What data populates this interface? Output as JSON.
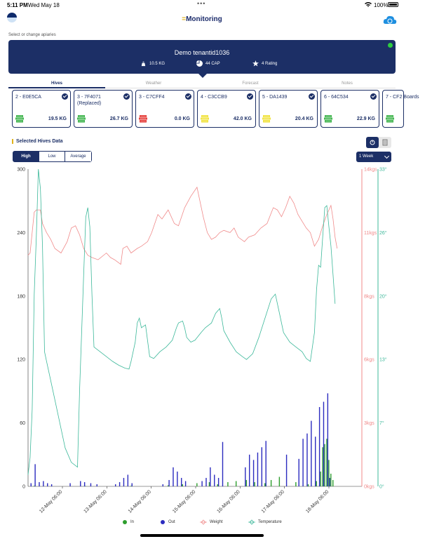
{
  "status_bar": {
    "time": "5:11 PM",
    "date": "Wed May 18",
    "battery": "100%"
  },
  "nav": {
    "title": "Monitoring",
    "title_mark": "="
  },
  "subtitle": "Select or change apiaries",
  "apiary": {
    "name": "Demo tenantid1036",
    "weight": "10.5 KG",
    "capacity": "44 CAP",
    "rating": "4 Rating"
  },
  "tabs": [
    {
      "label": "Hives",
      "active": true
    },
    {
      "label": "Weather",
      "active": false
    },
    {
      "label": "Forecast",
      "active": false
    },
    {
      "label": "Notes",
      "active": false
    }
  ],
  "hives": [
    {
      "name": "2 - E0E5CA",
      "weight": "19.5 KG",
      "status_color": "#3cb34a"
    },
    {
      "name": "3 - 7F4071 (Replaced)",
      "weight": "26.7 KG",
      "status_color": "#3cb34a"
    },
    {
      "name": "3 - C7CFF4",
      "weight": "0.0 KG",
      "status_color": "#e53935"
    },
    {
      "name": "4 - C3CCB9",
      "weight": "42.0 KG",
      "status_color": "#f0e23a"
    },
    {
      "name": "5 - DA1439",
      "weight": "20.4 KG",
      "status_color": "#f0e23a"
    },
    {
      "name": "6 - 64C534",
      "weight": "22.9 KG",
      "status_color": "#3cb34a"
    },
    {
      "name": "7 - CF2 Boards",
      "weight": "",
      "status_color": "#3cb34a"
    }
  ],
  "section_title": "Selected Hives Data",
  "range_buttons": [
    {
      "label": "High",
      "selected": true
    },
    {
      "label": "Low",
      "selected": false
    },
    {
      "label": "Average",
      "selected": false
    }
  ],
  "period": "1 Week",
  "colors": {
    "navy": "#1c2f66",
    "in": "#2e9e2e",
    "out": "#2b2bbf",
    "weight": "#f08a8a",
    "temperature": "#3cb89a"
  },
  "chart_data": {
    "type": "line",
    "x_tick_labels": [
      "12-May 06:00",
      "13-May 06:00",
      "14-May 06:00",
      "15-May 06:00",
      "16-May 06:00",
      "17-May 06:00",
      "18-May 06:00"
    ],
    "x_range": [
      0,
      162
    ],
    "left_axis": {
      "ticks": [
        "0",
        "60",
        "120",
        "180",
        "240",
        "300"
      ],
      "range": [
        0,
        300
      ]
    },
    "weight_axis": {
      "ticks": [
        "0kgs",
        "3kgs",
        "6kgs",
        "8kgs",
        "11kgs",
        "14kgs"
      ],
      "range": [
        0,
        14
      ]
    },
    "temperature_axis": {
      "ticks": [
        "0°",
        "7°",
        "13°",
        "20°",
        "26°",
        "33°"
      ],
      "range": [
        0,
        33
      ]
    },
    "legend": [
      "In",
      "Out",
      "Weight",
      "Temperature"
    ],
    "weight_series": [
      [
        0,
        10.2
      ],
      [
        1,
        10.3
      ],
      [
        3,
        12.1
      ],
      [
        4,
        12.2
      ],
      [
        6,
        12.2
      ],
      [
        7,
        11.6
      ],
      [
        9,
        11.2
      ],
      [
        11,
        10.9
      ],
      [
        13,
        10.5
      ],
      [
        16,
        10.3
      ],
      [
        19,
        10.8
      ],
      [
        21,
        11.4
      ],
      [
        23,
        11.5
      ],
      [
        25,
        11.1
      ],
      [
        27,
        10.5
      ],
      [
        29,
        10.2
      ],
      [
        31,
        10.1
      ],
      [
        34,
        10
      ],
      [
        38,
        10.3
      ],
      [
        40,
        10.1
      ],
      [
        42,
        10
      ],
      [
        45,
        9.8
      ],
      [
        46,
        10.5
      ],
      [
        48,
        10.6
      ],
      [
        50,
        10.3
      ],
      [
        53,
        10.5
      ],
      [
        55,
        10.6
      ],
      [
        58,
        10.8
      ],
      [
        60,
        11.2
      ],
      [
        63,
        12.0
      ],
      [
        65,
        11.8
      ],
      [
        68,
        12.2
      ],
      [
        71,
        11.6
      ],
      [
        73,
        11.5
      ],
      [
        76,
        12.3
      ],
      [
        79,
        12.8
      ],
      [
        82,
        13.2
      ],
      [
        85,
        11.9
      ],
      [
        87,
        11.2
      ],
      [
        89,
        10.9
      ],
      [
        91,
        11.0
      ],
      [
        93,
        11.2
      ],
      [
        95,
        11.3
      ],
      [
        98,
        11.2
      ],
      [
        100,
        11.4
      ],
      [
        102,
        11.0
      ],
      [
        105,
        10.8
      ],
      [
        107,
        11.0
      ],
      [
        110,
        11.1
      ],
      [
        113,
        11.4
      ],
      [
        116,
        11.6
      ],
      [
        119,
        12.3
      ],
      [
        121,
        12.2
      ],
      [
        123,
        11.9
      ],
      [
        125,
        12.3
      ],
      [
        127,
        12.8
      ],
      [
        129,
        12.5
      ],
      [
        131,
        12.0
      ],
      [
        133,
        11.7
      ],
      [
        135,
        11.4
      ],
      [
        137,
        11.2
      ],
      [
        139,
        10.6
      ],
      [
        141,
        10.9
      ],
      [
        143,
        11.5
      ],
      [
        145,
        12.0
      ],
      [
        147,
        12.4
      ],
      [
        148,
        11.8
      ],
      [
        149,
        11.0
      ],
      [
        150,
        10.5
      ]
    ],
    "temperature_series": [
      [
        0,
        1.2
      ],
      [
        1,
        3
      ],
      [
        2,
        8
      ],
      [
        3,
        20
      ],
      [
        4,
        26
      ],
      [
        5,
        33
      ],
      [
        6,
        31
      ],
      [
        7,
        25
      ],
      [
        8,
        14
      ],
      [
        9,
        13
      ],
      [
        12,
        10
      ],
      [
        15,
        7
      ],
      [
        18,
        4
      ],
      [
        21,
        2.5
      ],
      [
        24,
        2
      ],
      [
        25,
        10
      ],
      [
        27,
        22
      ],
      [
        28,
        28
      ],
      [
        29,
        29
      ],
      [
        30,
        27
      ],
      [
        31,
        20
      ],
      [
        32,
        14.5
      ],
      [
        35,
        14
      ],
      [
        38,
        13.5
      ],
      [
        41,
        13
      ],
      [
        44,
        12.6
      ],
      [
        47,
        12.3
      ],
      [
        49,
        12.2
      ],
      [
        50,
        13
      ],
      [
        52,
        15
      ],
      [
        53,
        17
      ],
      [
        54,
        17.5
      ],
      [
        55,
        16.5
      ],
      [
        57,
        16.8
      ],
      [
        59,
        13.5
      ],
      [
        61,
        13.3
      ],
      [
        64,
        14
      ],
      [
        67,
        14.5
      ],
      [
        70,
        15.2
      ],
      [
        72,
        16.5
      ],
      [
        73,
        17
      ],
      [
        75,
        17.2
      ],
      [
        76,
        16.5
      ],
      [
        77,
        15.5
      ],
      [
        79,
        15
      ],
      [
        81,
        15.2
      ],
      [
        84,
        16
      ],
      [
        86,
        16.5
      ],
      [
        89,
        17
      ],
      [
        91,
        18
      ],
      [
        93,
        18.5
      ],
      [
        94,
        17.5
      ],
      [
        95,
        16.2
      ],
      [
        98,
        15
      ],
      [
        101,
        14
      ],
      [
        104,
        13.5
      ],
      [
        106,
        13.2
      ],
      [
        109,
        13.8
      ],
      [
        112,
        15.5
      ],
      [
        115,
        17.5
      ],
      [
        118,
        19.5
      ],
      [
        120,
        20
      ],
      [
        122,
        18
      ],
      [
        124,
        16
      ],
      [
        127,
        15
      ],
      [
        130,
        14.5
      ],
      [
        133,
        14
      ],
      [
        135,
        13.3
      ],
      [
        137,
        13
      ],
      [
        139,
        16
      ],
      [
        140,
        20.5
      ],
      [
        141,
        23
      ],
      [
        142,
        22.8
      ],
      [
        143,
        26
      ],
      [
        144,
        29
      ],
      [
        145,
        29.2
      ],
      [
        146,
        27
      ],
      [
        147,
        25
      ],
      [
        148,
        22
      ],
      [
        149,
        19
      ]
    ],
    "in_series": [
      [
        3,
        0.5
      ],
      [
        28,
        0.3
      ],
      [
        50,
        0.5
      ],
      [
        68,
        1
      ],
      [
        75,
        2
      ],
      [
        82,
        3
      ],
      [
        88,
        4
      ],
      [
        92,
        2
      ],
      [
        97,
        4
      ],
      [
        101,
        5
      ],
      [
        106,
        6
      ],
      [
        110,
        4
      ],
      [
        115,
        3
      ],
      [
        118,
        6
      ],
      [
        122,
        9
      ],
      [
        130,
        4
      ],
      [
        136,
        2
      ],
      [
        140,
        5
      ],
      [
        142,
        14
      ],
      [
        143,
        37
      ],
      [
        144,
        40
      ],
      [
        145,
        45
      ],
      [
        146,
        25
      ],
      [
        147,
        12
      ],
      [
        148,
        6
      ]
    ],
    "out_series": [
      [
        1,
        3
      ],
      [
        3,
        21
      ],
      [
        5,
        4
      ],
      [
        7,
        5
      ],
      [
        9,
        3
      ],
      [
        11,
        2
      ],
      [
        20,
        3
      ],
      [
        25,
        5
      ],
      [
        27,
        4
      ],
      [
        30,
        3
      ],
      [
        33,
        2
      ],
      [
        42,
        2
      ],
      [
        44,
        4
      ],
      [
        46,
        8
      ],
      [
        48,
        11
      ],
      [
        50,
        3
      ],
      [
        65,
        2
      ],
      [
        68,
        6
      ],
      [
        70,
        18
      ],
      [
        72,
        14
      ],
      [
        74,
        8
      ],
      [
        76,
        5
      ],
      [
        84,
        5
      ],
      [
        86,
        8
      ],
      [
        88,
        18
      ],
      [
        90,
        11
      ],
      [
        92,
        8
      ],
      [
        94,
        42
      ],
      [
        105,
        18
      ],
      [
        107,
        30
      ],
      [
        109,
        25
      ],
      [
        111,
        32
      ],
      [
        113,
        37
      ],
      [
        115,
        43
      ],
      [
        125,
        30
      ],
      [
        131,
        26
      ],
      [
        133,
        45
      ],
      [
        135,
        50
      ],
      [
        137,
        62
      ],
      [
        139,
        47
      ],
      [
        141,
        75
      ],
      [
        143,
        80
      ],
      [
        145,
        88
      ],
      [
        146,
        8
      ]
    ]
  }
}
